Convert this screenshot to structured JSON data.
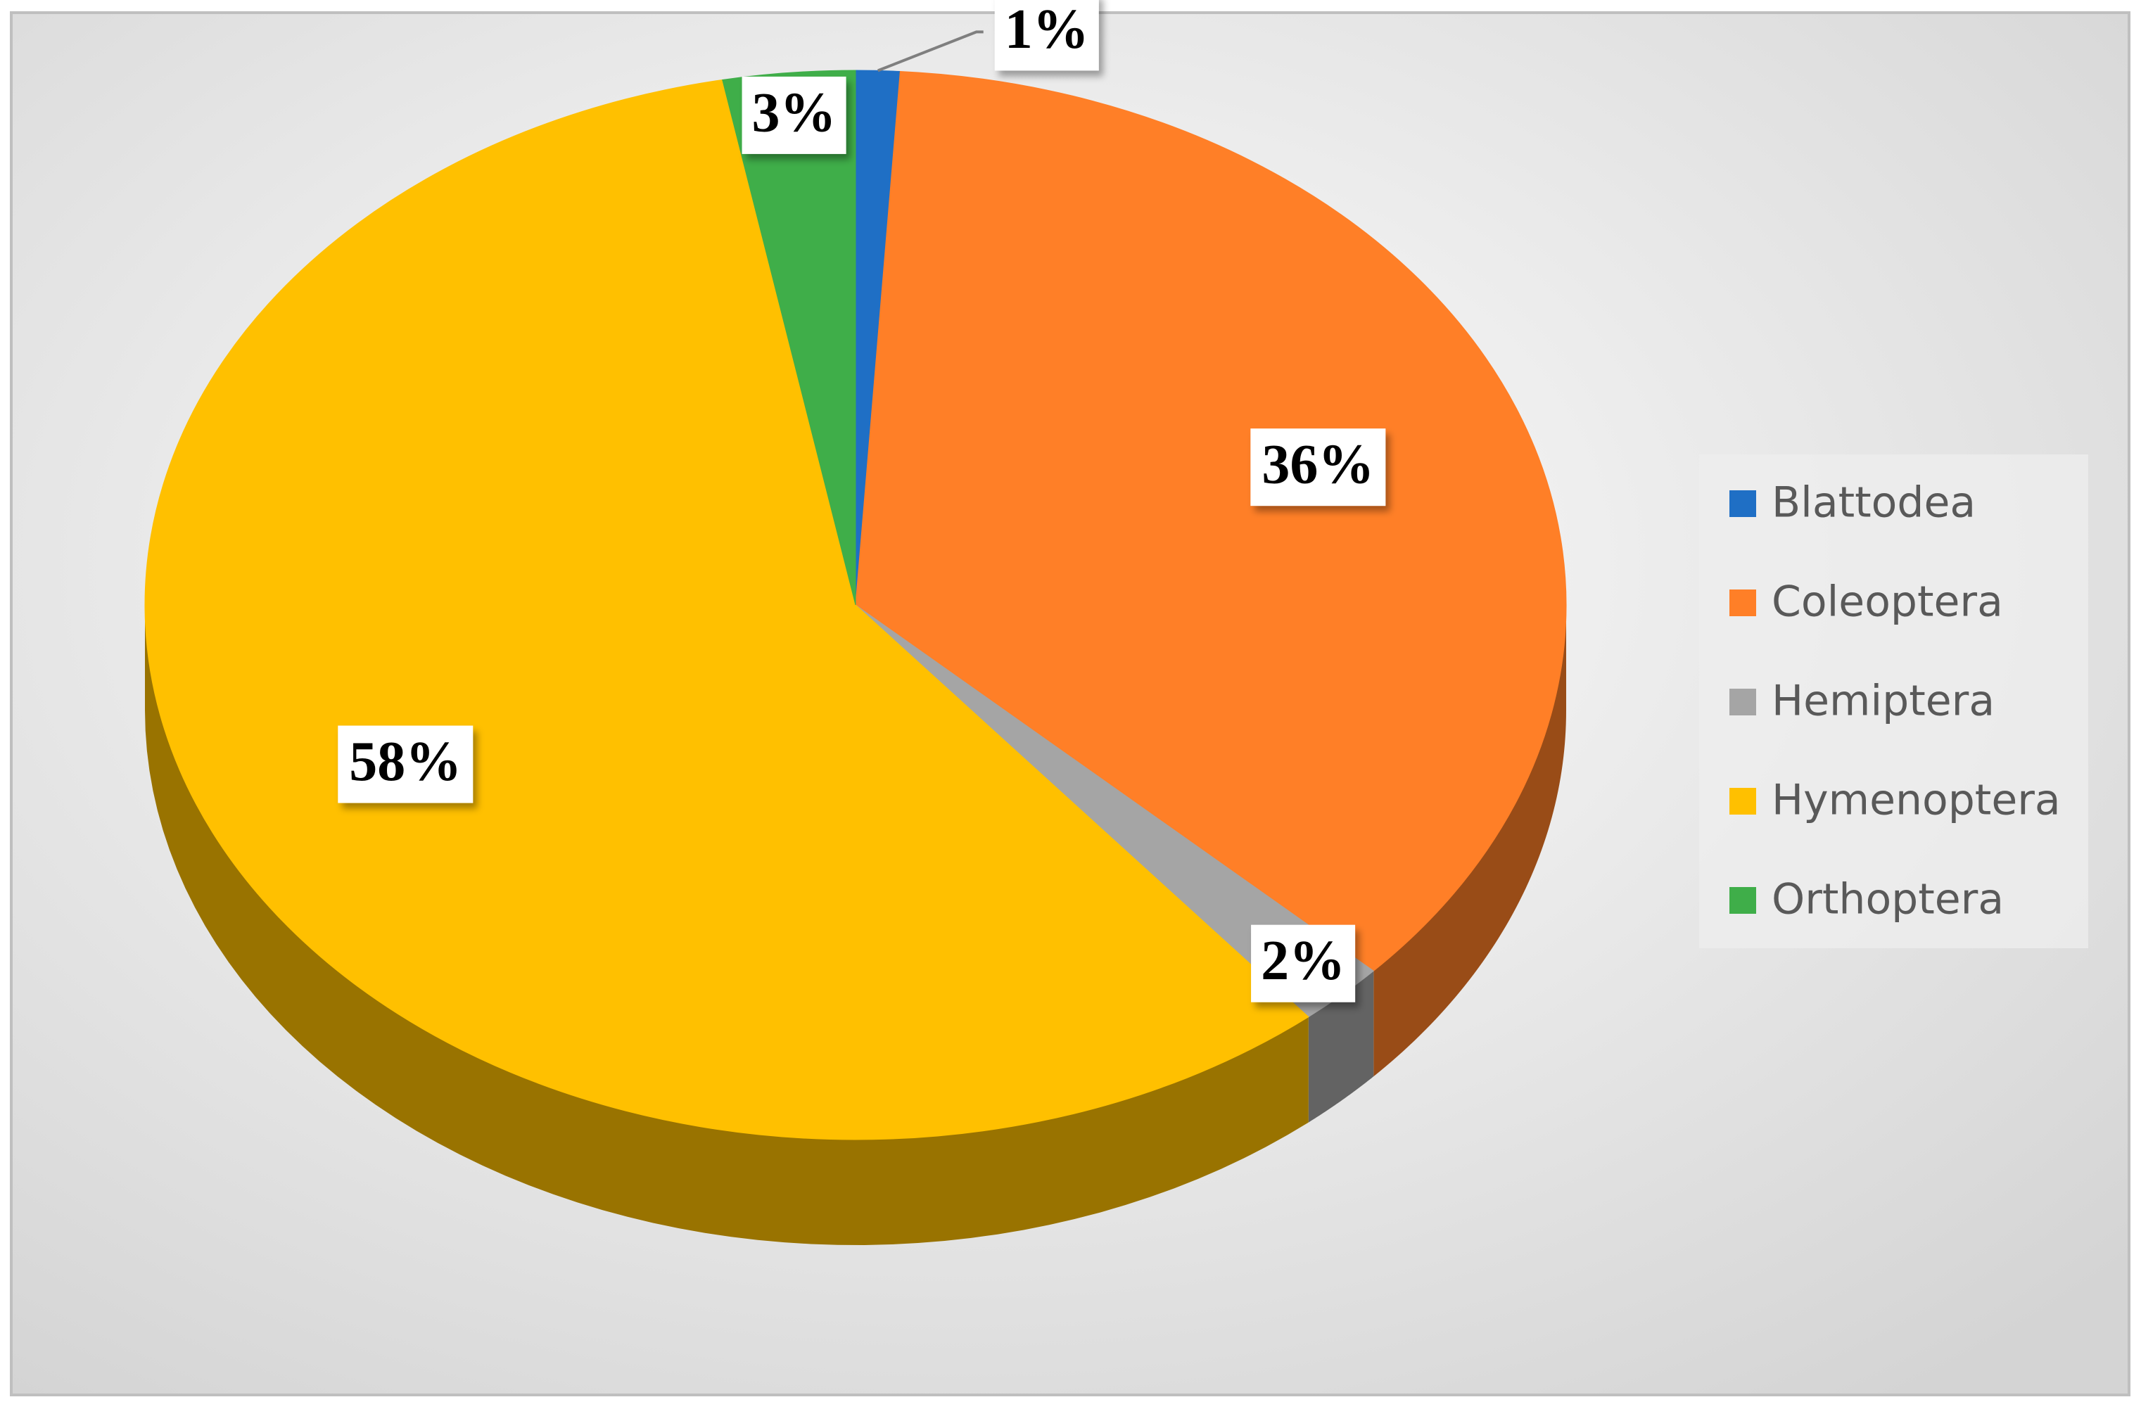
{
  "chart_data": {
    "type": "pie3d",
    "categories": [
      "Blattodea",
      "Coleoptera",
      "Hemiptera",
      "Hymenoptera",
      "Orthoptera"
    ],
    "values": [
      1,
      36,
      2,
      58,
      3
    ],
    "value_labels": [
      "1%",
      "36%",
      "2%",
      "58%",
      "3%"
    ],
    "colors": [
      "#1f6fc5",
      "#ff7f27",
      "#a5a5a5",
      "#ffc000",
      "#3fae49"
    ],
    "legend": "right"
  }
}
